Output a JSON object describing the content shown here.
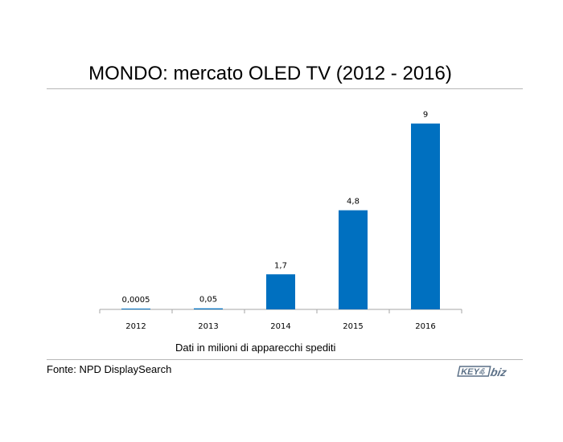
{
  "chart_data": {
    "type": "bar",
    "title": "MONDO: mercato OLED TV (2012 - 2016)",
    "categories": [
      "2012",
      "2013",
      "2014",
      "2015",
      "2016"
    ],
    "values": [
      0.0005,
      0.05,
      1.7,
      4.8,
      9
    ],
    "data_labels": [
      "0,0005",
      "0,05",
      "1,7",
      "4,8",
      "9"
    ],
    "xlabel": "Dati in milioni di apparecchi spediti",
    "ylabel": "",
    "ylim": [
      0,
      10
    ],
    "grid": false,
    "bar_color": "#0070c0"
  },
  "footer": {
    "source": "Fonte: NPD DisplaySearch",
    "logo_text": "KEY4biz"
  }
}
